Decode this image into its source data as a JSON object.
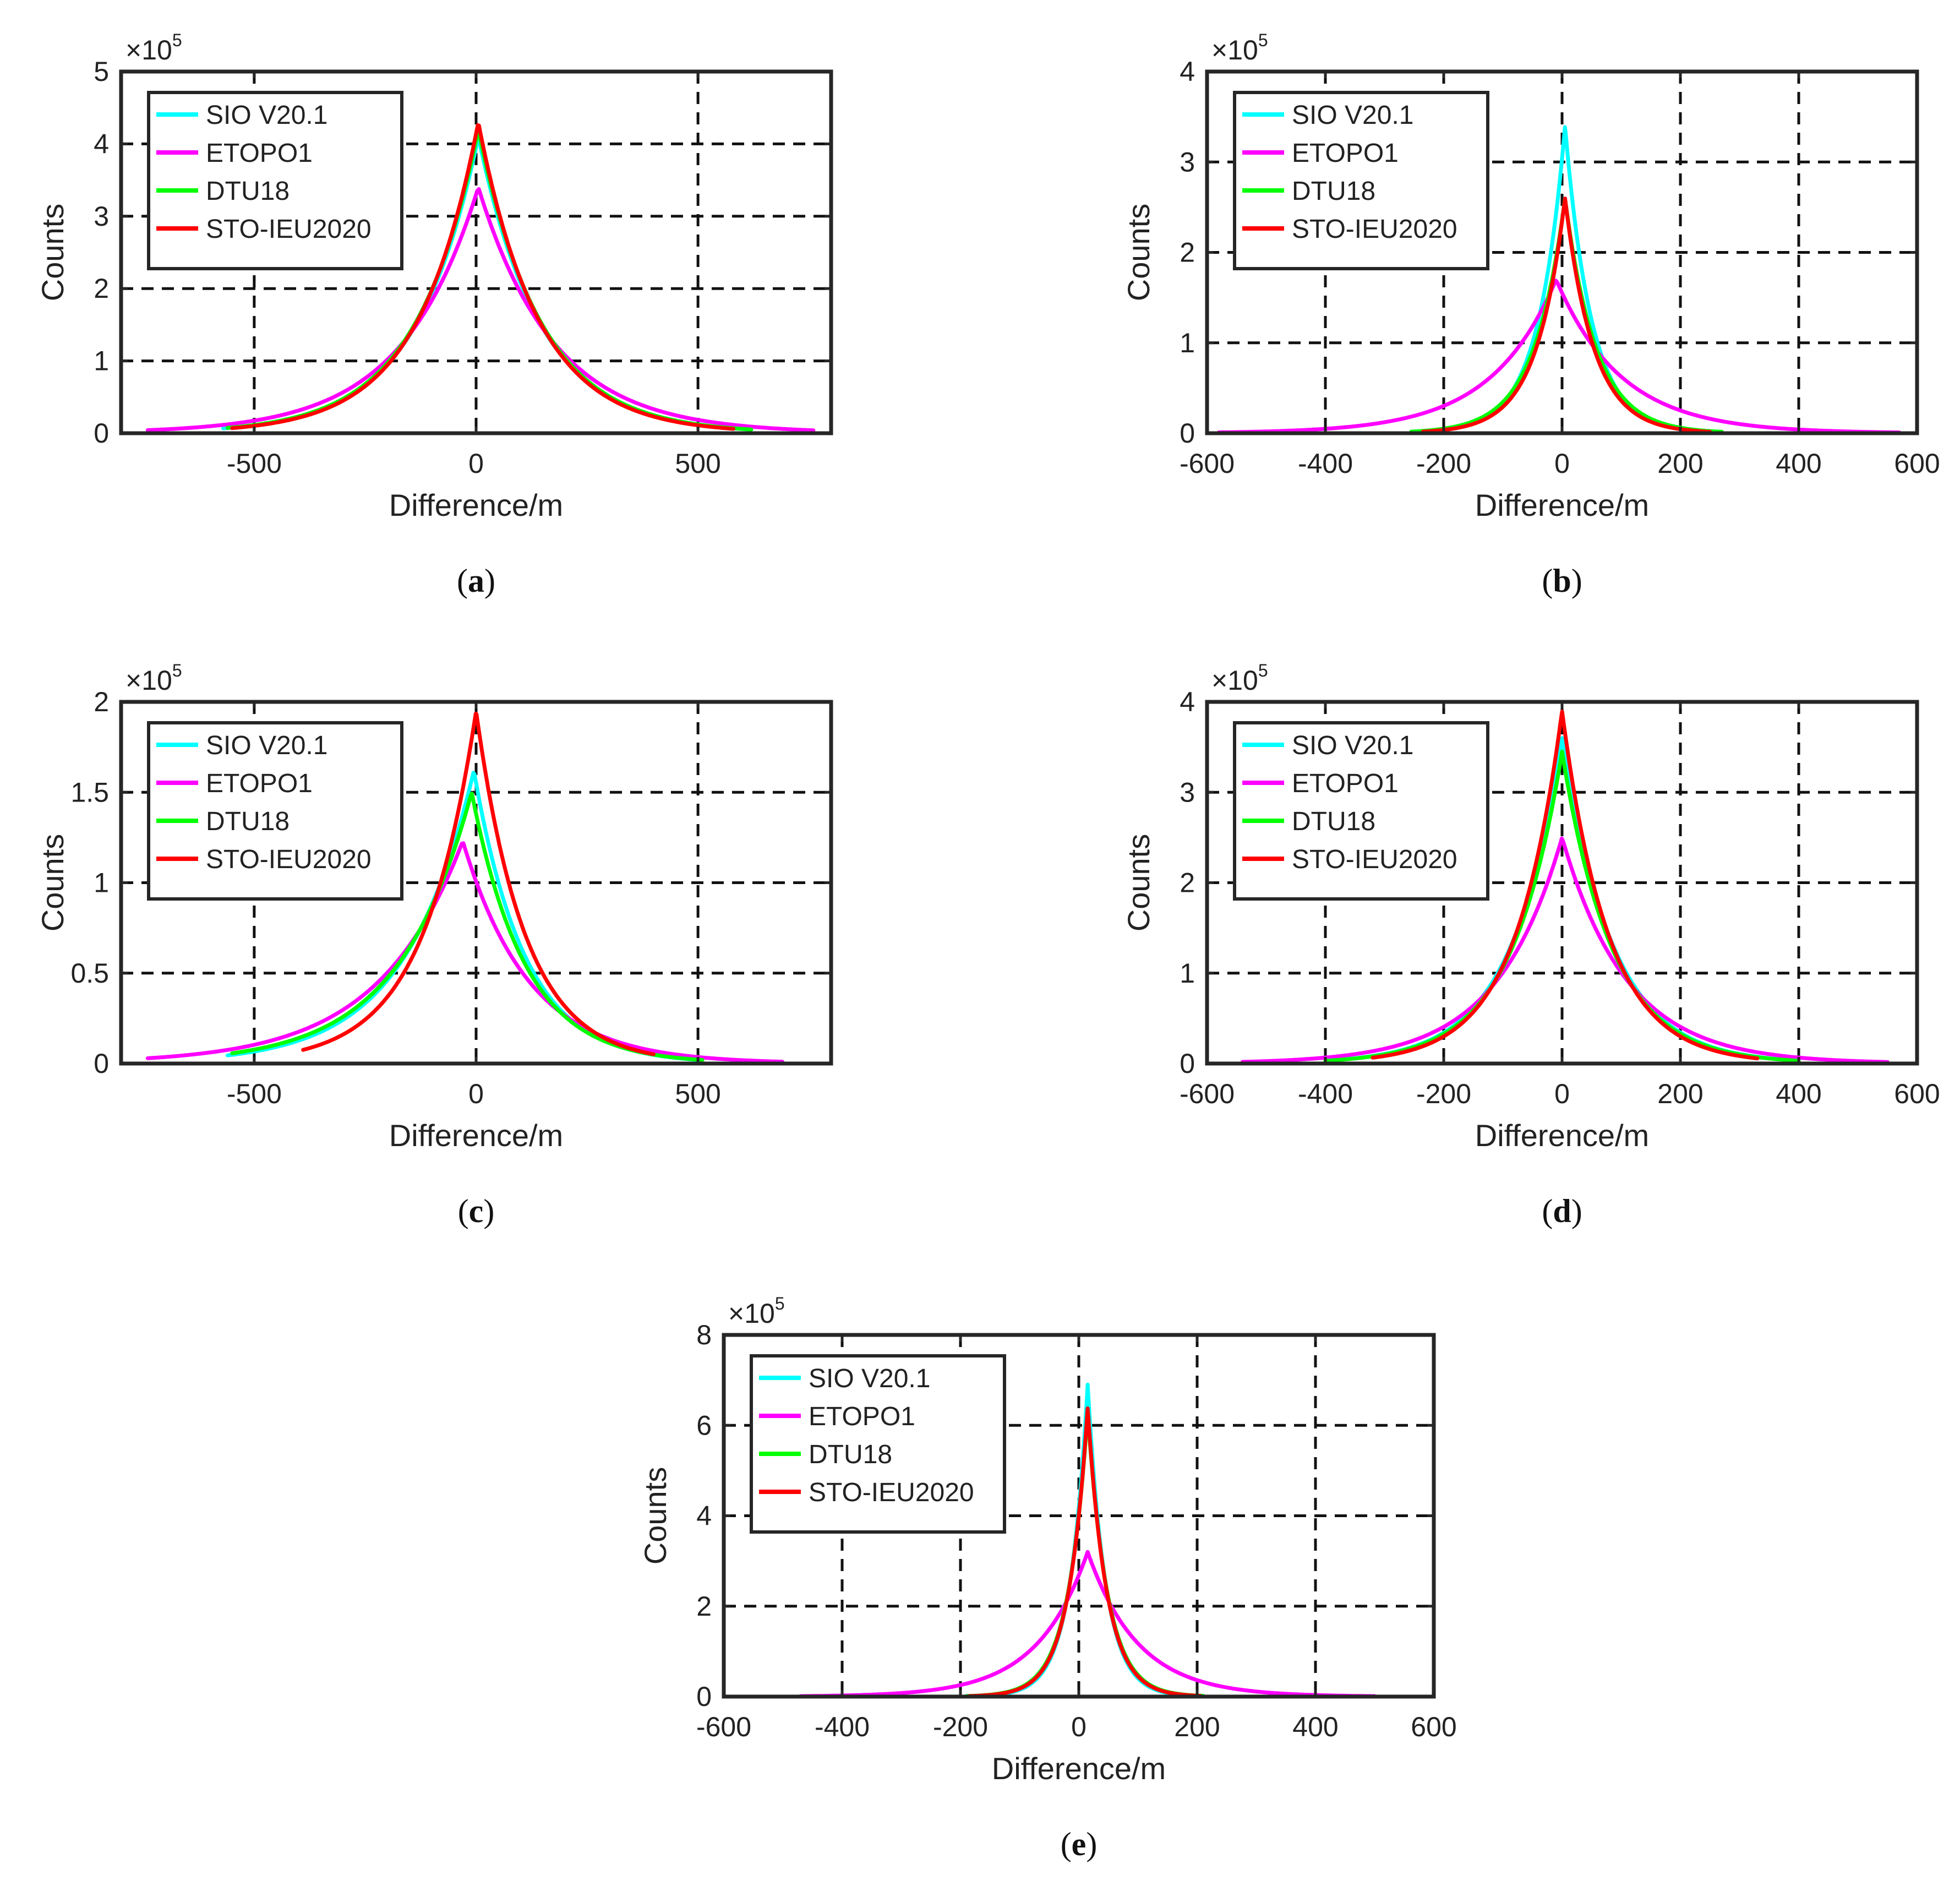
{
  "figure": {
    "colors": {
      "SIO V20.1": "#00ffff",
      "ETOPO1": "#ff00ff",
      "DTU18": "#00ff00",
      "STO-IEU2020": "#ff0000"
    }
  },
  "chart_data": [
    {
      "id": "a",
      "caption_letter": "a",
      "type": "line",
      "xlabel": "Difference/m",
      "ylabel": "Counts",
      "y_exponent_base": "×10",
      "y_exponent_power": "5",
      "xlim": [
        -800,
        800
      ],
      "ylim": [
        0,
        5
      ],
      "xticks": [
        -500,
        0,
        500
      ],
      "xtick_labels": [
        "-500",
        "0",
        "500"
      ],
      "yticks": [
        0,
        1,
        2,
        3,
        4,
        5
      ],
      "ytick_labels": [
        "0",
        "1",
        "2",
        "3",
        "4",
        "5"
      ],
      "legend": [
        "SIO V20.1",
        "ETOPO1",
        "DTU18",
        "STO-IEU2020"
      ],
      "legend_position": "top-left",
      "grid": true,
      "series": [
        {
          "name": "SIO V20.1",
          "peak_x": 5,
          "peak": 4.1,
          "scale_left": 140,
          "scale_right": 140,
          "x_min": -570,
          "x_max": 620
        },
        {
          "name": "ETOPO1",
          "peak_x": 5,
          "peak": 3.4,
          "scale_left": 170,
          "scale_right": 170,
          "x_min": -740,
          "x_max": 760
        },
        {
          "name": "DTU18",
          "peak_x": 5,
          "peak": 4.2,
          "scale_left": 140,
          "scale_right": 140,
          "x_min": -560,
          "x_max": 620
        },
        {
          "name": "STO-IEU2020",
          "peak_x": 5,
          "peak": 4.3,
          "scale_left": 135,
          "scale_right": 135,
          "x_min": -550,
          "x_max": 580
        }
      ]
    },
    {
      "id": "b",
      "caption_letter": "b",
      "type": "line",
      "xlabel": "Difference/m",
      "ylabel": "Counts",
      "y_exponent_base": "×10",
      "y_exponent_power": "5",
      "xlim": [
        -600,
        600
      ],
      "ylim": [
        0,
        4
      ],
      "xticks": [
        -600,
        -400,
        -200,
        0,
        200,
        400,
        600
      ],
      "xtick_labels": [
        "-600",
        "-400",
        "-200",
        "0",
        "200",
        "400",
        "600"
      ],
      "yticks": [
        0,
        1,
        2,
        3,
        4
      ],
      "ytick_labels": [
        "0",
        "1",
        "2",
        "3",
        "4"
      ],
      "legend": [
        "SIO V20.1",
        "ETOPO1",
        "DTU18",
        "STO-IEU2020"
      ],
      "legend_position": "top-left",
      "grid": true,
      "series": [
        {
          "name": "SIO V20.1",
          "peak_x": 5,
          "peak": 3.4,
          "scale_left": 45,
          "scale_right": 45,
          "x_min": -250,
          "x_max": 270
        },
        {
          "name": "ETOPO1",
          "peak_x": -10,
          "peak": 1.7,
          "scale_left": 110,
          "scale_right": 110,
          "x_min": -580,
          "x_max": 570
        },
        {
          "name": "DTU18",
          "peak_x": 5,
          "peak": 2.6,
          "scale_left": 52,
          "scale_right": 52,
          "x_min": -255,
          "x_max": 270
        },
        {
          "name": "STO-IEU2020",
          "peak_x": 5,
          "peak": 2.6,
          "scale_left": 48,
          "scale_right": 48,
          "x_min": -235,
          "x_max": 250
        }
      ]
    },
    {
      "id": "c",
      "caption_letter": "c",
      "type": "line",
      "xlabel": "Difference/m",
      "ylabel": "Counts",
      "y_exponent_base": "×10",
      "y_exponent_power": "5",
      "xlim": [
        -800,
        800
      ],
      "ylim": [
        0,
        2
      ],
      "xticks": [
        -500,
        0,
        500
      ],
      "xtick_labels": [
        "-500",
        "0",
        "500"
      ],
      "yticks": [
        0,
        0.5,
        1,
        1.5,
        2
      ],
      "ytick_labels": [
        "0",
        "0.5",
        "1",
        "1.5",
        "2"
      ],
      "legend": [
        "SIO V20.1",
        "ETOPO1",
        "DTU18",
        "STO-IEU2020"
      ],
      "legend_position": "top-left",
      "grid": true,
      "series": [
        {
          "name": "SIO V20.1",
          "peak_x": -5,
          "peak": 1.62,
          "scale_left": 155,
          "scale_right": 115,
          "x_min": -560,
          "x_max": 500
        },
        {
          "name": "ETOPO1",
          "peak_x": -30,
          "peak": 1.23,
          "scale_left": 190,
          "scale_right": 150,
          "x_min": -740,
          "x_max": 690
        },
        {
          "name": "DTU18",
          "peak_x": -10,
          "peak": 1.5,
          "scale_left": 165,
          "scale_right": 120,
          "x_min": -550,
          "x_max": 510
        },
        {
          "name": "STO-IEU2020",
          "peak_x": 0,
          "peak": 1.95,
          "scale_left": 120,
          "scale_right": 110,
          "x_min": -390,
          "x_max": 400
        }
      ]
    },
    {
      "id": "d",
      "caption_letter": "d",
      "type": "line",
      "xlabel": "Difference/m",
      "ylabel": "Counts",
      "y_exponent_base": "×10",
      "y_exponent_power": "5",
      "xlim": [
        -600,
        600
      ],
      "ylim": [
        0,
        4
      ],
      "xticks": [
        -600,
        -400,
        -200,
        0,
        200,
        400,
        600
      ],
      "xtick_labels": [
        "-600",
        "-400",
        "-200",
        "0",
        "200",
        "400",
        "600"
      ],
      "yticks": [
        0,
        1,
        2,
        3,
        4
      ],
      "ytick_labels": [
        "0",
        "1",
        "2",
        "3",
        "4"
      ],
      "legend": [
        "SIO V20.1",
        "ETOPO1",
        "DTU18",
        "STO-IEU2020"
      ],
      "legend_position": "top-left",
      "grid": true,
      "series": [
        {
          "name": "SIO V20.1",
          "peak_x": 0,
          "peak": 3.6,
          "scale_left": 85,
          "scale_right": 85,
          "x_min": -400,
          "x_max": 400
        },
        {
          "name": "ETOPO1",
          "peak_x": 0,
          "peak": 2.5,
          "scale_left": 110,
          "scale_right": 110,
          "x_min": -540,
          "x_max": 550
        },
        {
          "name": "DTU18",
          "peak_x": 0,
          "peak": 3.45,
          "scale_left": 85,
          "scale_right": 85,
          "x_min": -400,
          "x_max": 400
        },
        {
          "name": "STO-IEU2020",
          "peak_x": 0,
          "peak": 3.9,
          "scale_left": 78,
          "scale_right": 78,
          "x_min": -320,
          "x_max": 330
        }
      ]
    },
    {
      "id": "e",
      "caption_letter": "e",
      "type": "line",
      "xlabel": "Difference/m",
      "ylabel": "Counts",
      "y_exponent_base": "×10",
      "y_exponent_power": "5",
      "xlim": [
        -600,
        600
      ],
      "ylim": [
        0,
        8
      ],
      "xticks": [
        -600,
        -400,
        -200,
        0,
        200,
        400,
        600
      ],
      "xtick_labels": [
        "-600",
        "-400",
        "-200",
        "0",
        "200",
        "400",
        "600"
      ],
      "yticks": [
        0,
        2,
        4,
        6,
        8
      ],
      "ytick_labels": [
        "0",
        "2",
        "4",
        "6",
        "8"
      ],
      "legend": [
        "SIO V20.1",
        "ETOPO1",
        "DTU18",
        "STO-IEU2020"
      ],
      "legend_position": "top-left",
      "grid": true,
      "series": [
        {
          "name": "SIO V20.1",
          "peak_x": 15,
          "peak": 6.9,
          "scale_left": 30,
          "scale_right": 30,
          "x_min": -190,
          "x_max": 210
        },
        {
          "name": "ETOPO1",
          "peak_x": 15,
          "peak": 3.2,
          "scale_left": 85,
          "scale_right": 85,
          "x_min": -470,
          "x_max": 500
        },
        {
          "name": "DTU18",
          "peak_x": 15,
          "peak": 6.3,
          "scale_left": 33,
          "scale_right": 33,
          "x_min": -190,
          "x_max": 210
        },
        {
          "name": "STO-IEU2020",
          "peak_x": 15,
          "peak": 6.4,
          "scale_left": 32,
          "scale_right": 32,
          "x_min": -185,
          "x_max": 205
        }
      ]
    }
  ]
}
